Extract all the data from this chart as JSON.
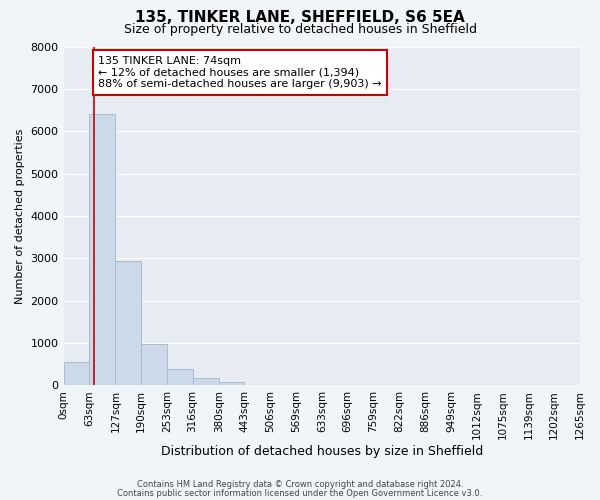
{
  "title": "135, TINKER LANE, SHEFFIELD, S6 5EA",
  "subtitle": "Size of property relative to detached houses in Sheffield",
  "xlabel": "Distribution of detached houses by size in Sheffield",
  "ylabel": "Number of detached properties",
  "bar_color": "#ccd9e8",
  "bar_edge_color": "#aabbd0",
  "vline_color": "#cc0000",
  "vline_x": 74,
  "annotation_text": "135 TINKER LANE: 74sqm\n← 12% of detached houses are smaller (1,394)\n88% of semi-detached houses are larger (9,903) →",
  "bin_edges": [
    0,
    63,
    127,
    190,
    253,
    316,
    380,
    443,
    506,
    569,
    633,
    696,
    759,
    822,
    886,
    949,
    1012,
    1075,
    1139,
    1202,
    1265
  ],
  "bin_labels": [
    "0sqm",
    "63sqm",
    "127sqm",
    "190sqm",
    "253sqm",
    "316sqm",
    "380sqm",
    "443sqm",
    "506sqm",
    "569sqm",
    "633sqm",
    "696sqm",
    "759sqm",
    "822sqm",
    "886sqm",
    "949sqm",
    "1012sqm",
    "1075sqm",
    "1139sqm",
    "1202sqm",
    "1265sqm"
  ],
  "bar_heights": [
    560,
    6400,
    2930,
    970,
    380,
    170,
    90,
    0,
    0,
    0,
    0,
    0,
    0,
    0,
    0,
    0,
    0,
    0,
    0,
    0
  ],
  "ylim": [
    0,
    8000
  ],
  "yticks": [
    0,
    1000,
    2000,
    3000,
    4000,
    5000,
    6000,
    7000,
    8000
  ],
  "background_color": "#f2f5f8",
  "plot_bg_color": "#e6ecf2",
  "footer_line1": "Contains HM Land Registry data © Crown copyright and database right 2024.",
  "footer_line2": "Contains public sector information licensed under the Open Government Licence v3.0.",
  "title_fontsize": 11,
  "subtitle_fontsize": 9,
  "xlabel_fontsize": 9,
  "ylabel_fontsize": 8,
  "annotation_box_color": "#ffffff",
  "annotation_box_edge": "#cc0000",
  "grid_color": "#ffffff",
  "annotation_fontsize": 8,
  "tick_fontsize": 7.5,
  "ytick_fontsize": 8
}
